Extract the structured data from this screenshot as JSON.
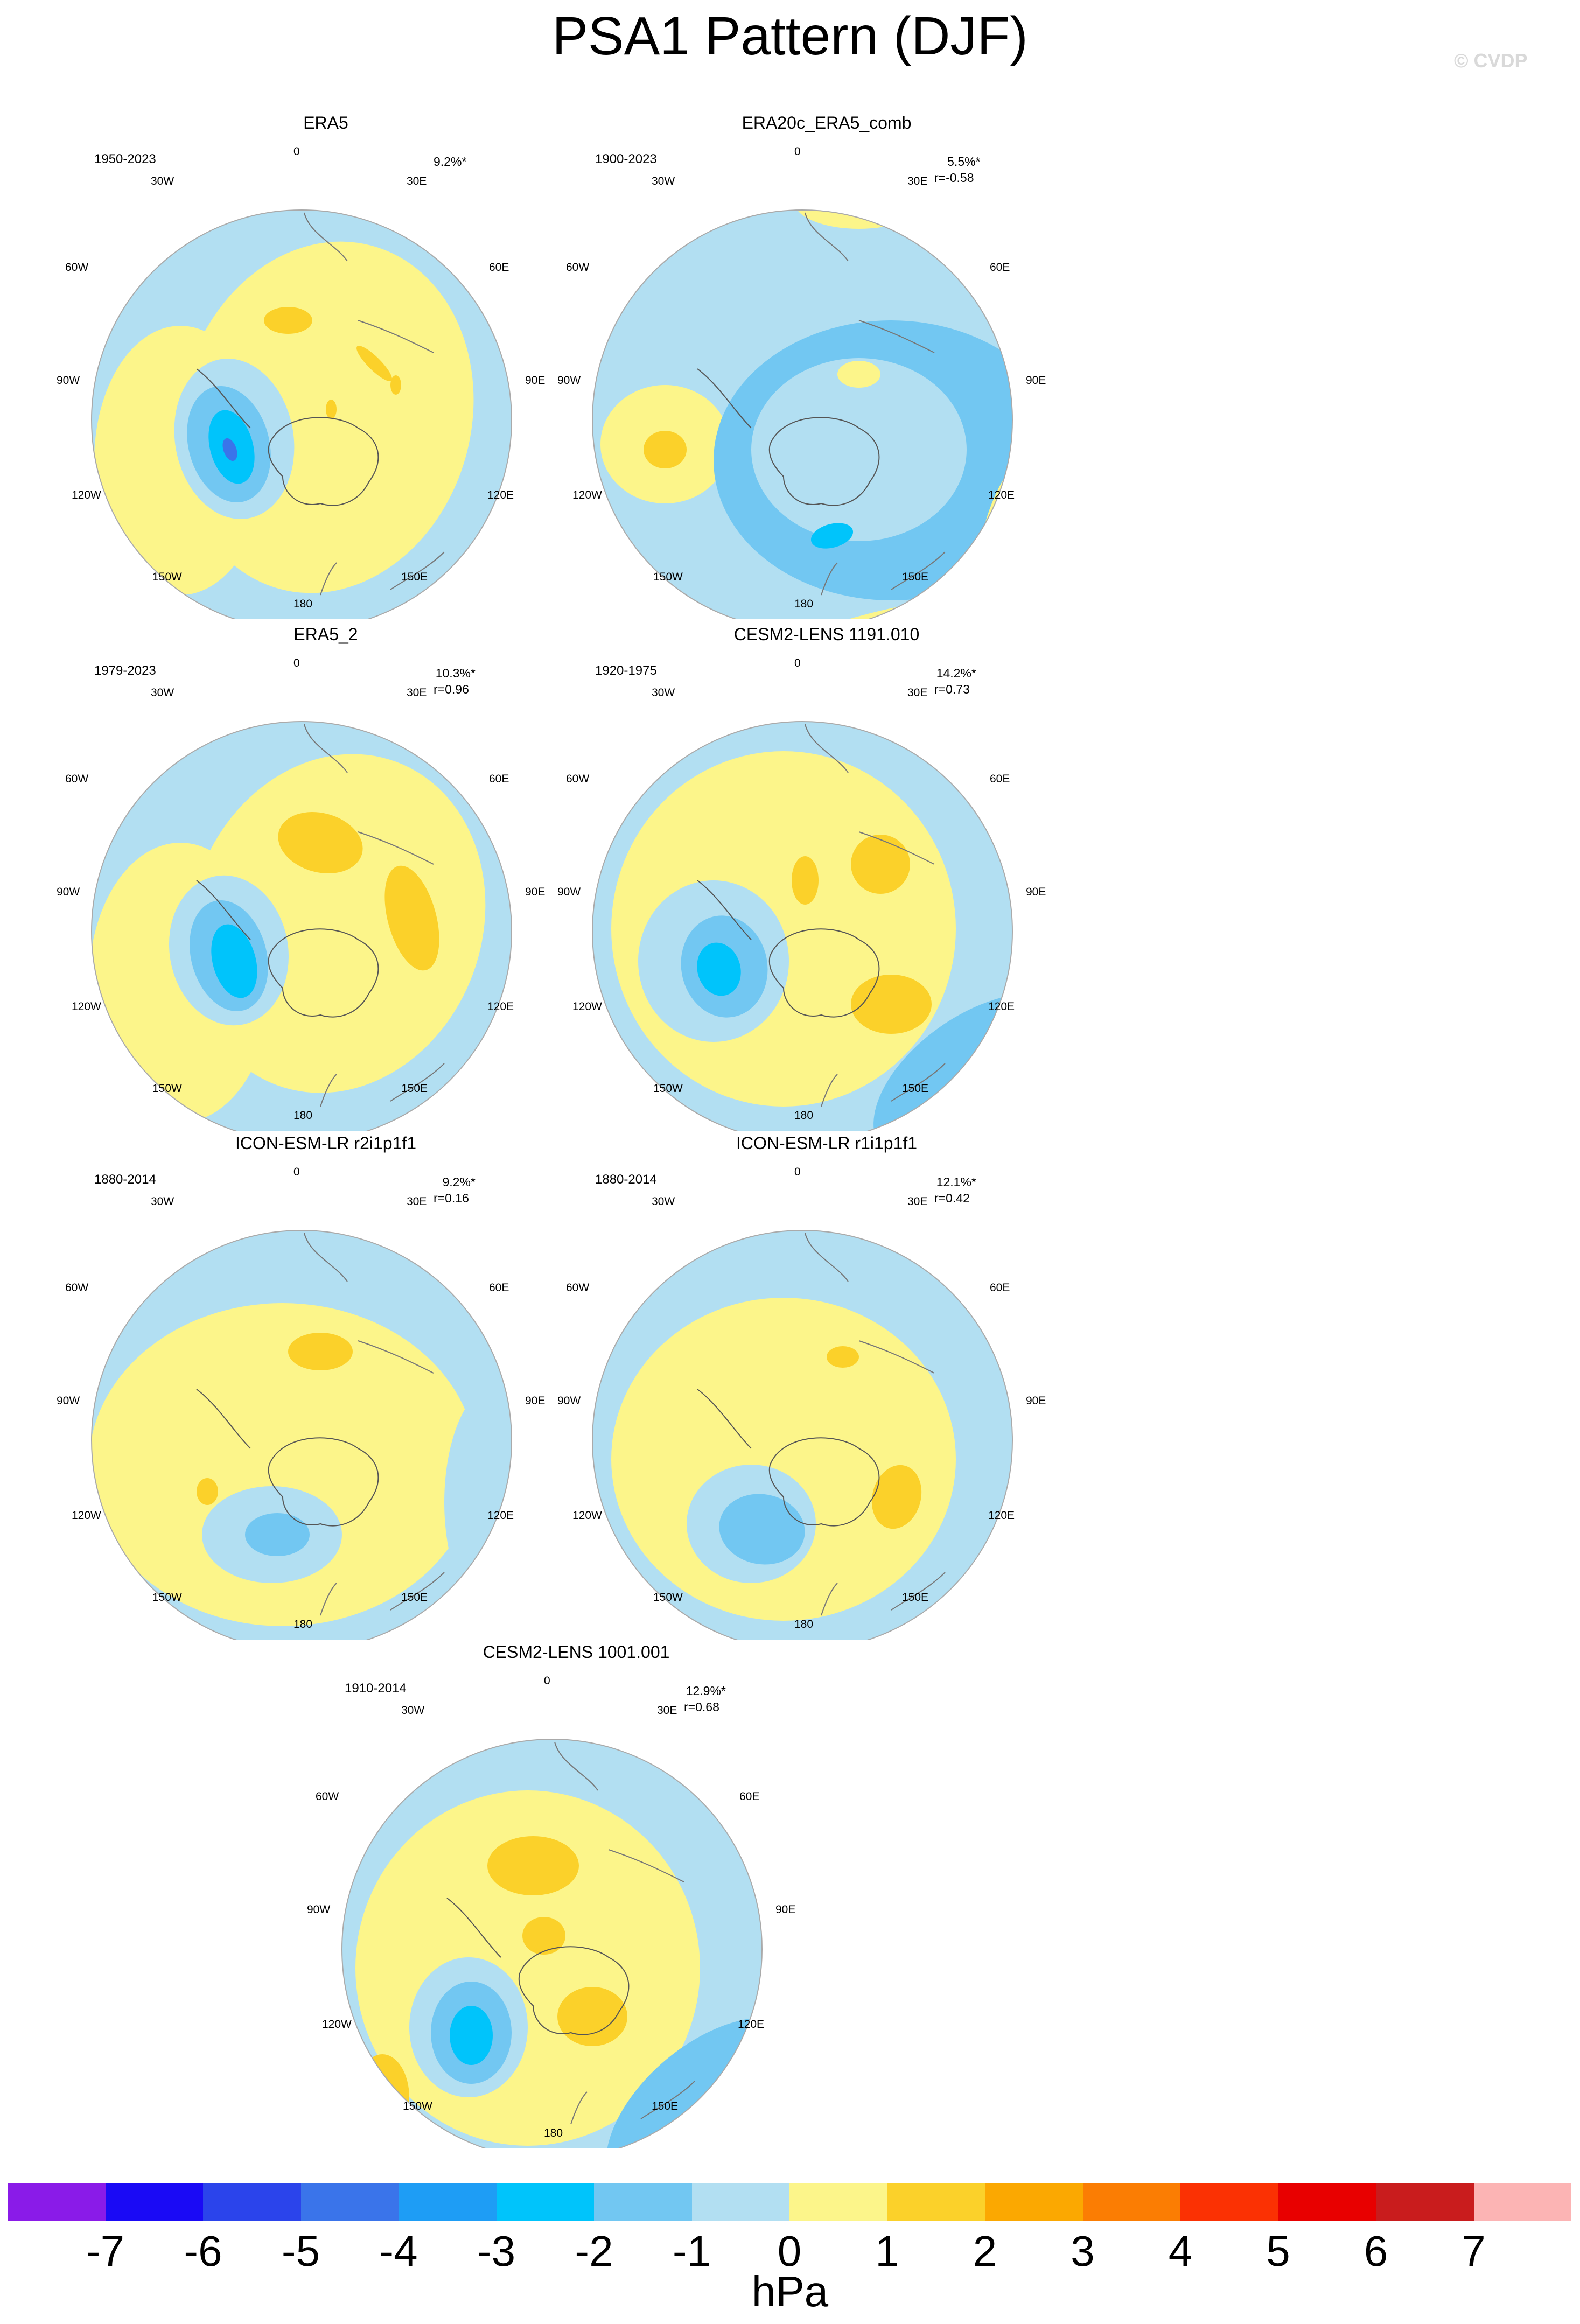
{
  "title": "PSA1 Pattern (DJF)",
  "watermark": "© CVDP",
  "lon_labels": {
    "top": "0",
    "tr1": "30E",
    "tr2": "60E",
    "right": "90E",
    "br2": "120E",
    "br1": "150E",
    "bottom": "180",
    "bl1": "150W",
    "bl2": "120W",
    "left": "90W",
    "tl2": "60W",
    "tl1": "30W"
  },
  "panels": [
    {
      "title": "ERA5",
      "period": "1950-2023",
      "pct": "9.2%*",
      "r": ""
    },
    {
      "title": "ERA20c_ERA5_comb",
      "period": "1900-2023",
      "pct": "5.5%*",
      "r": "r=-0.58"
    },
    {
      "title": "ERA5_2",
      "period": "1979-2023",
      "pct": "10.3%*",
      "r": "r=0.96"
    },
    {
      "title": "CESM2-LENS 1191.010",
      "period": "1920-1975",
      "pct": "14.2%*",
      "r": "r=0.73"
    },
    {
      "title": "ICON-ESM-LR r2i1p1f1",
      "period": "1880-2014",
      "pct": "9.2%*",
      "r": "r=0.16"
    },
    {
      "title": "ICON-ESM-LR r1i1p1f1",
      "period": "1880-2014",
      "pct": "12.1%*",
      "r": "r=0.42"
    },
    {
      "title": "CESM2-LENS 1001.001",
      "period": "1910-2014",
      "pct": "12.9%*",
      "r": "r=0.68"
    }
  ],
  "colorbar": {
    "unit": "hPa",
    "tick_labels": [
      "-7",
      "-6",
      "-5",
      "-4",
      "-3",
      "-2",
      "-1",
      "0",
      "1",
      "2",
      "3",
      "4",
      "5",
      "6",
      "7"
    ],
    "colors": [
      "#8a1be8",
      "#1a0af5",
      "#2b44eb",
      "#3a74ea",
      "#1e9df5",
      "#00c4fb",
      "#72c7f2",
      "#b2dff2",
      "#fcf58a",
      "#fbd12a",
      "#fba801",
      "#fb7d03",
      "#fb3103",
      "#e80000",
      "#c91c1d",
      "#fcb4b4"
    ]
  }
}
